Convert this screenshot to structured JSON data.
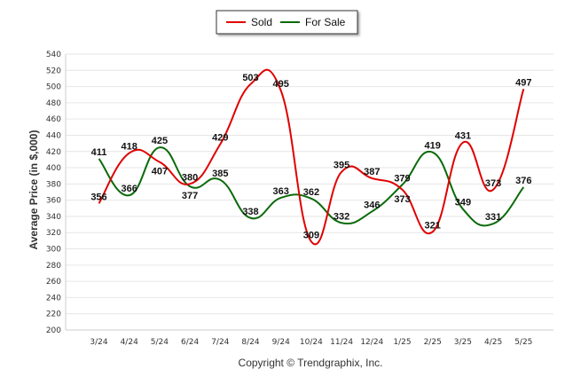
{
  "chart_data": {
    "type": "line",
    "title": "",
    "xlabel": "",
    "ylabel": "Average Price (in $,000)",
    "ylim": [
      200,
      540
    ],
    "yticks": [
      200,
      220,
      240,
      260,
      280,
      300,
      320,
      340,
      360,
      380,
      400,
      420,
      440,
      460,
      480,
      500,
      520,
      540
    ],
    "categories": [
      "3/24",
      "4/24",
      "5/24",
      "6/24",
      "7/24",
      "8/24",
      "9/24",
      "10/24",
      "11/24",
      "12/24",
      "1/25",
      "2/25",
      "3/25",
      "4/25",
      "5/25"
    ],
    "grid": "horizontal",
    "legend_position": "top-center",
    "series": [
      {
        "name": "Sold",
        "color": "#e00000",
        "values": [
          356,
          418,
          407,
          380,
          429,
          503,
          495,
          309,
          395,
          387,
          373,
          321,
          431,
          373,
          497
        ]
      },
      {
        "name": "For Sale",
        "color": "#0a6a0a",
        "values": [
          411,
          366,
          425,
          377,
          385,
          338,
          363,
          362,
          332,
          346,
          379,
          419,
          349,
          331,
          376
        ]
      }
    ]
  },
  "footer": {
    "copyright": "Copyright © Trendgraphix, Inc."
  }
}
